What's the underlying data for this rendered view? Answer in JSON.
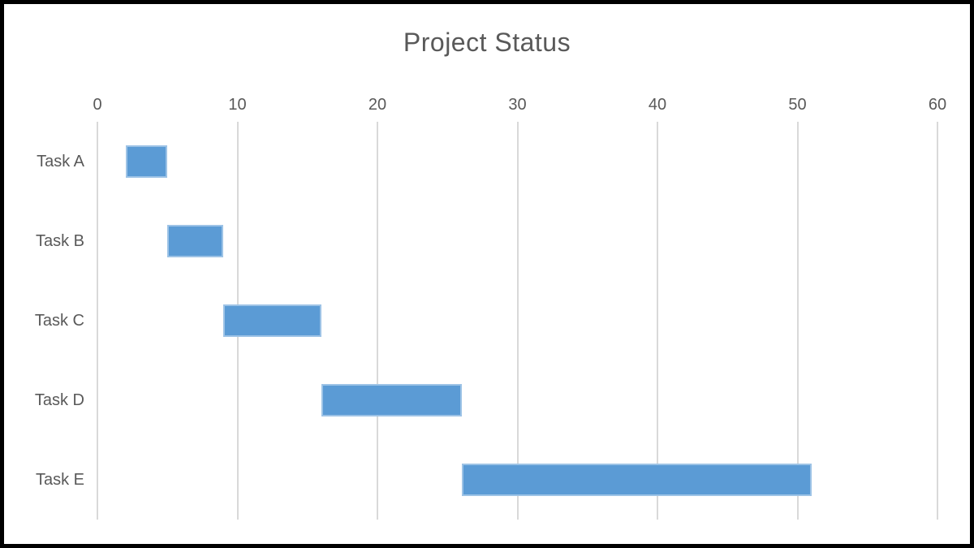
{
  "chart_data": {
    "type": "bar",
    "subtype": "gantt",
    "orientation": "horizontal",
    "title": "Project Status",
    "categories": [
      "Task A",
      "Task B",
      "Task C",
      "Task D",
      "Task E"
    ],
    "bars": [
      {
        "label": "Task A",
        "start": 2,
        "end": 5,
        "duration": 3
      },
      {
        "label": "Task B",
        "start": 5,
        "end": 9,
        "duration": 4
      },
      {
        "label": "Task C",
        "start": 9,
        "end": 16,
        "duration": 7
      },
      {
        "label": "Task D",
        "start": 16,
        "end": 26,
        "duration": 10
      },
      {
        "label": "Task E",
        "start": 26,
        "end": 51,
        "duration": 25
      }
    ],
    "xlim": [
      0,
      60
    ],
    "x_ticks": [
      0,
      10,
      20,
      30,
      40,
      50,
      60
    ],
    "x_axis_position": "top",
    "grid": "vertical",
    "legend": "none",
    "colors": {
      "bar_fill": "#5B9BD5",
      "bar_border": "#9DC3E6",
      "gridline": "#D9D9D9",
      "text": "#595959",
      "background": "#FFFFFF",
      "frame_border": "#000000"
    }
  }
}
